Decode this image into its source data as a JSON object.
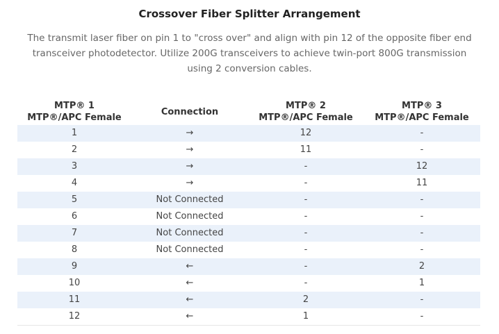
{
  "title": "Crossover Fiber Splitter Arrangement",
  "description": "The transmit laser fiber on pin 1 to \"cross over\" and align with pin 12 of the opposite fiber end transceiver photodetector. Utilize 200G transceivers to achieve twin-port 800G transmission using 2 conversion cables.",
  "table": {
    "headers": [
      {
        "line1": "MTP® 1",
        "line2": "MTP®/APC Female"
      },
      {
        "line1": "Connection",
        "line2": ""
      },
      {
        "line1": "MTP® 2",
        "line2": "MTP®/APC Female"
      },
      {
        "line1": "MTP® 3",
        "line2": "MTP®/APC Female"
      }
    ],
    "rows": [
      {
        "mtp1": "1",
        "connection": "→",
        "mtp2": "12",
        "mtp3": "-"
      },
      {
        "mtp1": "2",
        "connection": "→",
        "mtp2": "11",
        "mtp3": "-"
      },
      {
        "mtp1": "3",
        "connection": "→",
        "mtp2": "-",
        "mtp3": "12"
      },
      {
        "mtp1": "4",
        "connection": "→",
        "mtp2": "-",
        "mtp3": "11"
      },
      {
        "mtp1": "5",
        "connection": "Not Connected",
        "mtp2": "-",
        "mtp3": "-"
      },
      {
        "mtp1": "6",
        "connection": "Not Connected",
        "mtp2": "-",
        "mtp3": "-"
      },
      {
        "mtp1": "7",
        "connection": "Not Connected",
        "mtp2": "-",
        "mtp3": "-"
      },
      {
        "mtp1": "8",
        "connection": "Not Connected",
        "mtp2": "-",
        "mtp3": "-"
      },
      {
        "mtp1": "9",
        "connection": "←",
        "mtp2": "-",
        "mtp3": "2"
      },
      {
        "mtp1": "10",
        "connection": "←",
        "mtp2": "-",
        "mtp3": "1"
      },
      {
        "mtp1": "11",
        "connection": "←",
        "mtp2": "2",
        "mtp3": "-"
      },
      {
        "mtp1": "12",
        "connection": "←",
        "mtp2": "1",
        "mtp3": "-"
      }
    ]
  }
}
